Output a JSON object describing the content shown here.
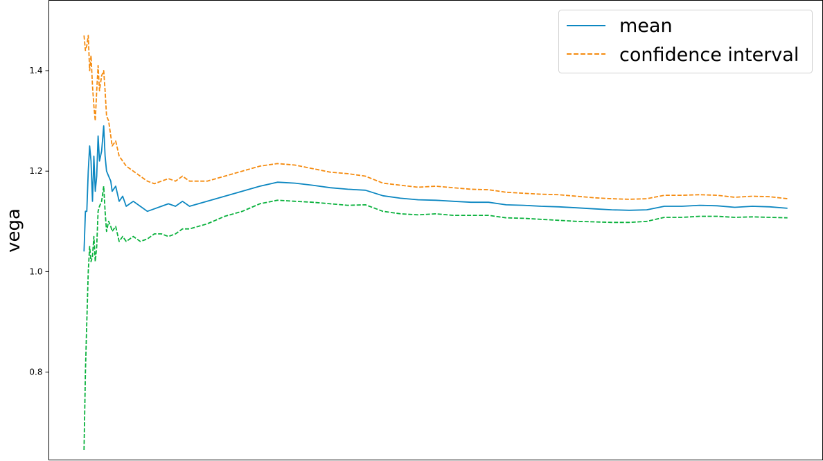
{
  "chart_data": {
    "type": "line",
    "title": "",
    "xlabel": "",
    "ylabel": "vega",
    "xlim": [
      -50,
      1050
    ],
    "ylim": [
      0.625,
      1.54
    ],
    "yticks": [
      0.8,
      1.0,
      1.2,
      1.4
    ],
    "ytick_labels": [
      "0.8",
      "1.0",
      "1.2",
      "1.4"
    ],
    "grid": false,
    "legend": {
      "placement": "top-right",
      "entries": [
        "mean",
        "confidence interval"
      ]
    },
    "colors": {
      "mean": "#0c87c1",
      "upper": "#f58b0f",
      "lower": "#09b13c"
    },
    "series": [
      {
        "name": "mean",
        "style": "solid",
        "x": [
          0,
          2,
          4,
          6,
          8,
          10,
          12,
          14,
          16,
          18,
          20,
          22,
          25,
          28,
          30,
          32,
          35,
          38,
          40,
          45,
          50,
          55,
          60,
          70,
          80,
          90,
          100,
          110,
          120,
          130,
          140,
          150,
          175,
          200,
          225,
          250,
          275,
          300,
          325,
          350,
          375,
          400,
          425,
          450,
          475,
          500,
          525,
          550,
          575,
          600,
          625,
          650,
          675,
          700,
          725,
          750,
          775,
          800,
          825,
          850,
          875,
          900,
          925,
          950,
          975,
          1000
        ],
        "y": [
          1.04,
          1.12,
          1.12,
          1.2,
          1.25,
          1.22,
          1.14,
          1.23,
          1.16,
          1.19,
          1.27,
          1.22,
          1.24,
          1.29,
          1.23,
          1.2,
          1.19,
          1.18,
          1.16,
          1.17,
          1.14,
          1.15,
          1.13,
          1.14,
          1.13,
          1.12,
          1.125,
          1.13,
          1.135,
          1.13,
          1.14,
          1.13,
          1.14,
          1.15,
          1.16,
          1.17,
          1.178,
          1.176,
          1.172,
          1.167,
          1.164,
          1.162,
          1.151,
          1.146,
          1.143,
          1.142,
          1.14,
          1.138,
          1.138,
          1.133,
          1.132,
          1.13,
          1.129,
          1.127,
          1.125,
          1.123,
          1.122,
          1.123,
          1.13,
          1.13,
          1.132,
          1.131,
          1.128,
          1.13,
          1.129,
          1.126
        ]
      },
      {
        "name": "confidence interval",
        "style": "dashed",
        "x": [
          0,
          2,
          4,
          6,
          8,
          10,
          12,
          14,
          16,
          18,
          20,
          22,
          25,
          28,
          30,
          32,
          35,
          38,
          40,
          45,
          50,
          55,
          60,
          70,
          80,
          90,
          100,
          110,
          120,
          130,
          140,
          150,
          175,
          200,
          225,
          250,
          275,
          300,
          325,
          350,
          375,
          400,
          425,
          450,
          475,
          500,
          525,
          550,
          575,
          600,
          625,
          650,
          675,
          700,
          725,
          750,
          775,
          800,
          825,
          850,
          875,
          900,
          925,
          950,
          975,
          1000
        ],
        "y": [
          1.47,
          1.44,
          1.45,
          1.47,
          1.4,
          1.43,
          1.37,
          1.33,
          1.3,
          1.36,
          1.41,
          1.36,
          1.39,
          1.4,
          1.36,
          1.31,
          1.3,
          1.27,
          1.25,
          1.26,
          1.23,
          1.22,
          1.21,
          1.2,
          1.19,
          1.18,
          1.175,
          1.18,
          1.185,
          1.18,
          1.19,
          1.18,
          1.18,
          1.19,
          1.2,
          1.21,
          1.215,
          1.212,
          1.205,
          1.198,
          1.195,
          1.19,
          1.176,
          1.172,
          1.168,
          1.17,
          1.167,
          1.164,
          1.163,
          1.158,
          1.156,
          1.154,
          1.153,
          1.15,
          1.147,
          1.145,
          1.144,
          1.145,
          1.152,
          1.152,
          1.153,
          1.152,
          1.148,
          1.15,
          1.149,
          1.145
        ]
      },
      {
        "name": "",
        "style": "dashed",
        "x": [
          0,
          2,
          4,
          6,
          8,
          10,
          12,
          14,
          16,
          18,
          20,
          22,
          25,
          28,
          30,
          32,
          35,
          38,
          40,
          45,
          50,
          55,
          60,
          70,
          80,
          90,
          100,
          110,
          120,
          130,
          140,
          150,
          175,
          200,
          225,
          250,
          275,
          300,
          325,
          350,
          375,
          400,
          425,
          450,
          475,
          500,
          525,
          550,
          575,
          600,
          625,
          650,
          675,
          700,
          725,
          750,
          775,
          800,
          825,
          850,
          875,
          900,
          925,
          950,
          975,
          1000
        ],
        "y": [
          0.645,
          0.8,
          0.9,
          1.0,
          1.05,
          1.02,
          1.03,
          1.07,
          1.02,
          1.05,
          1.12,
          1.13,
          1.14,
          1.17,
          1.12,
          1.08,
          1.1,
          1.09,
          1.08,
          1.09,
          1.06,
          1.07,
          1.06,
          1.07,
          1.06,
          1.065,
          1.075,
          1.075,
          1.07,
          1.075,
          1.085,
          1.085,
          1.095,
          1.11,
          1.12,
          1.135,
          1.142,
          1.14,
          1.138,
          1.135,
          1.132,
          1.133,
          1.12,
          1.115,
          1.113,
          1.115,
          1.112,
          1.112,
          1.112,
          1.107,
          1.106,
          1.104,
          1.102,
          1.1,
          1.099,
          1.098,
          1.098,
          1.1,
          1.108,
          1.108,
          1.11,
          1.11,
          1.108,
          1.109,
          1.108,
          1.107
        ]
      }
    ]
  }
}
